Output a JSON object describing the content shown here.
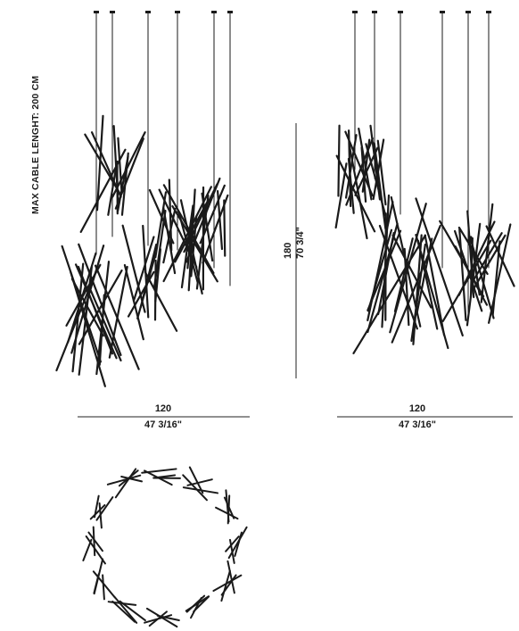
{
  "cable_note": "MAX CABLE LENGHT: 200 CM",
  "height_dims": {
    "metric": "180",
    "imperial": "70 3/4\""
  },
  "width_dims_left": {
    "metric": "120",
    "imperial": "47 3/16\""
  },
  "width_dims_right": {
    "metric": "120",
    "imperial": "47 3/16\""
  }
}
